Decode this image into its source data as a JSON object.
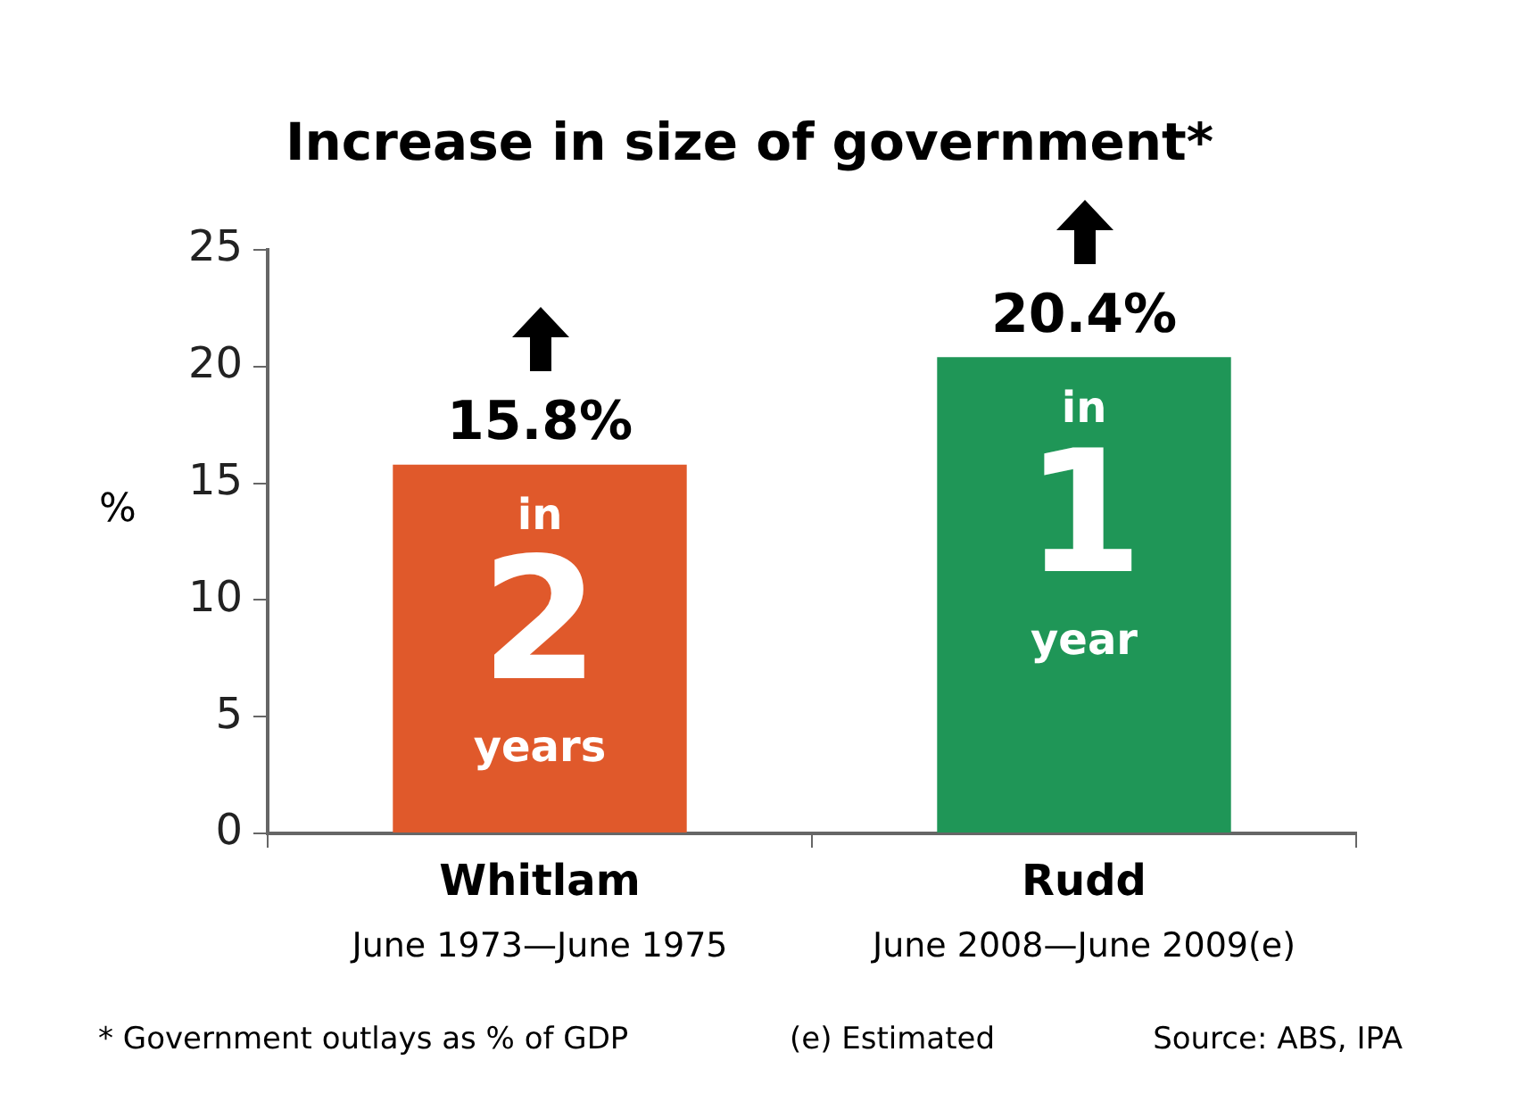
{
  "chart_data": {
    "type": "bar",
    "title": "Increase in size of government*",
    "ylabel": "%",
    "categories": [
      "Whitlam",
      "Rudd"
    ],
    "values": [
      15.8,
      20.4
    ],
    "colors": [
      "#e0592b",
      "#1f9657"
    ],
    "value_labels": [
      "15.8%",
      "20.4%"
    ],
    "ylim": [
      0,
      25
    ],
    "yticks": [
      0,
      5,
      10,
      15,
      20,
      25
    ],
    "grid": false,
    "legend": false,
    "annotations": [
      "June 1973—June 1975",
      "June 2008—June 2009(e)",
      "in",
      "2",
      "years",
      "in",
      "1",
      "year",
      "* Government outlays as % of GDP",
      "(e) Estimated",
      "Source: ABS, IPA"
    ]
  }
}
